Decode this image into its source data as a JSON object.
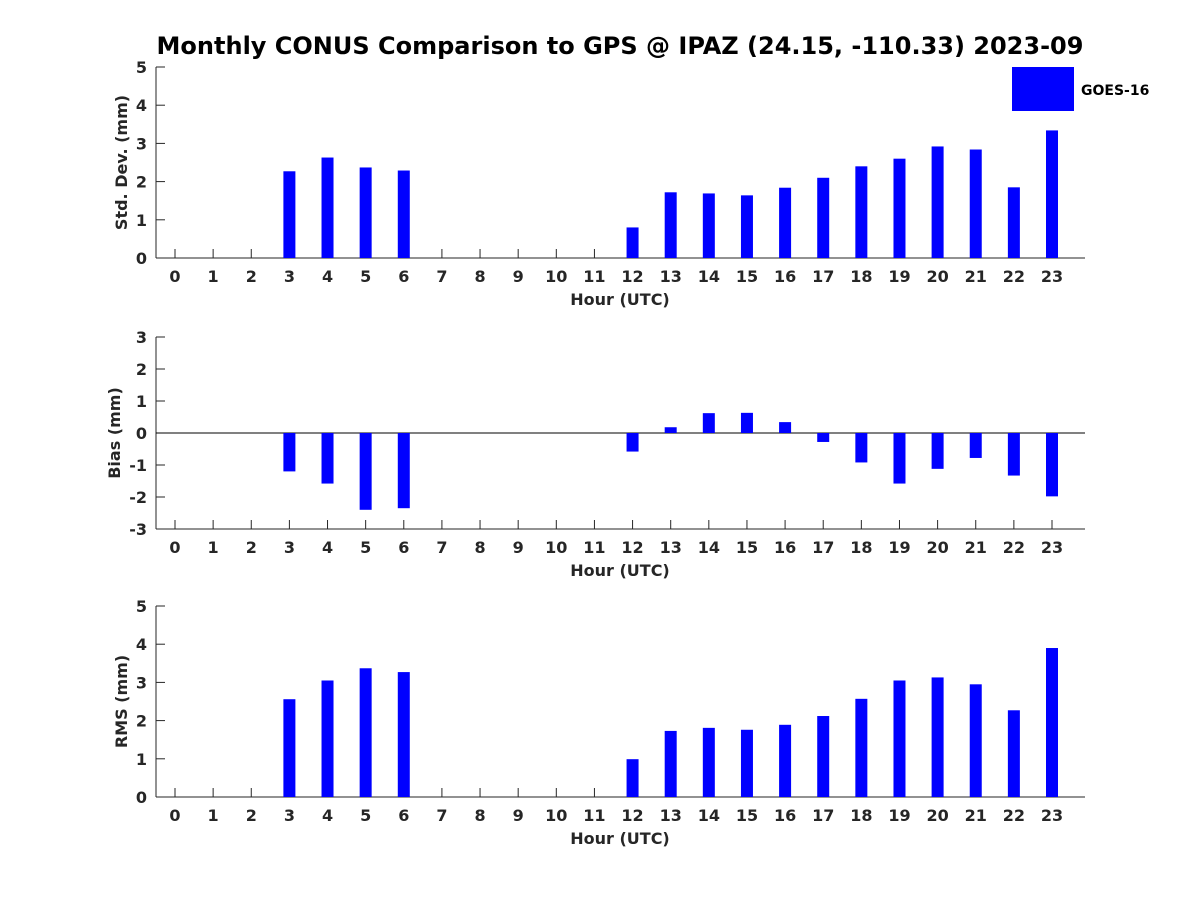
{
  "chart_title": "Monthly CONUS Comparison to GPS @ IPAZ (24.15, -110.33) 2023-09",
  "legend": {
    "label": "GOES-16",
    "color": "#0000FF"
  },
  "bar_color": "#0000FF",
  "chart_data": [
    {
      "type": "bar",
      "title": "",
      "xlabel": "Hour (UTC)",
      "ylabel": "Std. Dev. (mm)",
      "ylim": [
        0,
        5
      ],
      "yticks": [
        "0",
        "1",
        "2",
        "3",
        "4",
        "5"
      ],
      "categories": [
        "0",
        "1",
        "2",
        "3",
        "4",
        "5",
        "6",
        "7",
        "8",
        "9",
        "10",
        "11",
        "12",
        "13",
        "14",
        "15",
        "16",
        "17",
        "18",
        "19",
        "20",
        "21",
        "22",
        "23"
      ],
      "series": [
        {
          "name": "GOES-16",
          "values": [
            null,
            null,
            null,
            2.27,
            2.63,
            2.37,
            2.29,
            null,
            null,
            null,
            null,
            null,
            0.8,
            1.72,
            1.69,
            1.64,
            1.84,
            2.1,
            2.4,
            2.6,
            2.92,
            2.84,
            1.85,
            3.34
          ]
        }
      ]
    },
    {
      "type": "bar",
      "title": "",
      "xlabel": "Hour (UTC)",
      "ylabel": "Bias (mm)",
      "ylim": [
        -3,
        3
      ],
      "yticks": [
        "-3",
        "-2",
        "-1",
        "0",
        "1",
        "2",
        "3"
      ],
      "zero_line": true,
      "categories": [
        "0",
        "1",
        "2",
        "3",
        "4",
        "5",
        "6",
        "7",
        "8",
        "9",
        "10",
        "11",
        "12",
        "13",
        "14",
        "15",
        "16",
        "17",
        "18",
        "19",
        "20",
        "21",
        "22",
        "23"
      ],
      "series": [
        {
          "name": "GOES-16",
          "values": [
            null,
            null,
            null,
            -1.2,
            -1.58,
            -2.4,
            -2.35,
            null,
            null,
            null,
            null,
            null,
            -0.58,
            0.18,
            0.62,
            0.63,
            0.34,
            -0.28,
            -0.92,
            -1.58,
            -1.12,
            -0.78,
            -1.33,
            -1.98
          ]
        }
      ]
    },
    {
      "type": "bar",
      "title": "",
      "xlabel": "Hour (UTC)",
      "ylabel": "RMS (mm)",
      "ylim": [
        0,
        5
      ],
      "yticks": [
        "0",
        "1",
        "2",
        "3",
        "4",
        "5"
      ],
      "categories": [
        "0",
        "1",
        "2",
        "3",
        "4",
        "5",
        "6",
        "7",
        "8",
        "9",
        "10",
        "11",
        "12",
        "13",
        "14",
        "15",
        "16",
        "17",
        "18",
        "19",
        "20",
        "21",
        "22",
        "23"
      ],
      "series": [
        {
          "name": "GOES-16",
          "values": [
            null,
            null,
            null,
            2.56,
            3.05,
            3.37,
            3.27,
            null,
            null,
            null,
            null,
            null,
            0.99,
            1.73,
            1.81,
            1.76,
            1.89,
            2.12,
            2.57,
            3.05,
            3.13,
            2.95,
            2.27,
            3.9
          ]
        }
      ]
    }
  ]
}
